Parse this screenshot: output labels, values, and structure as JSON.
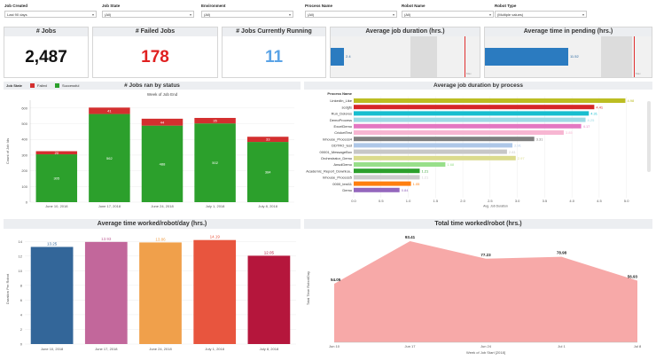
{
  "filters": [
    {
      "label": "Job Created",
      "value": "Last 90 days"
    },
    {
      "label": "Job State",
      "value": "(All)"
    },
    {
      "label": "Environment",
      "value": "(All)"
    },
    {
      "label": "Process Name",
      "value": "(All)"
    },
    {
      "label": "Robot Name",
      "value": "(All)"
    },
    {
      "label": "Robot Type",
      "value": "(Multiple values)"
    }
  ],
  "kpis": {
    "jobs": {
      "title": "# Jobs",
      "value": "2,487",
      "color": "#111111"
    },
    "failed": {
      "title": "# Failed Jobs",
      "value": "178",
      "color": "#e02020"
    },
    "running": {
      "title": "# Jobs Currently Running",
      "value": "11",
      "color": "#5aa3e6"
    }
  },
  "gauges": {
    "duration": {
      "title": "Average job duration (hrs.)",
      "value_label": "2.4",
      "value": 2.4,
      "max_label": "Max",
      "fill_fraction": 0.09
    },
    "pending": {
      "title": "Average time in pending (hrs.)",
      "value_label": "11.52",
      "value": 11.52,
      "max_label": "Max",
      "fill_fraction": 0.5
    }
  },
  "status_chart": {
    "panel_title": "# Jobs ran by status",
    "legend_title": "Job State",
    "legend": [
      {
        "name": "Failed",
        "color": "#d32f2f"
      },
      {
        "name": "Successful",
        "color": "#2ca02c"
      }
    ],
    "chart_data": {
      "type": "bar",
      "title": "Week of Job End",
      "ylabel": "Count of Job Ids",
      "ylim": [
        0,
        650
      ],
      "yticks": [
        "0",
        "100",
        "200",
        "300",
        "400",
        "500",
        "600"
      ],
      "categories": [
        "June 10, 2018",
        "June 17, 2018",
        "June 24, 2018",
        "July 1, 2018",
        "July 8, 2018"
      ],
      "series": [
        {
          "name": "Successful",
          "color": "#2ca02c",
          "values": [
            305,
            562,
            488,
            502,
            384
          ]
        },
        {
          "name": "Failed",
          "color": "#d32f2f",
          "values": [
            20,
            41,
            44,
            35,
            33
          ]
        }
      ]
    }
  },
  "process_chart": {
    "panel_title": "Average job duration by process",
    "column_label": "Process Name",
    "chart_data": {
      "type": "bar",
      "orientation": "horizontal",
      "xlabel": "Avg. Job Duration",
      "xlim": [
        0,
        5.2
      ],
      "xticks": [
        "0.0",
        "0.5",
        "1.0",
        "1.5",
        "2.0",
        "2.5",
        "3.0",
        "3.5",
        "4.0",
        "4.5",
        "5.0"
      ],
      "categories": [
        "LinkedIn_Like",
        "scdgfs",
        "Run_Dolores",
        "DemoProcess",
        "ExcelDemo",
        "CricketTest",
        "Inhouse_Process4",
        "DDTRO_test",
        "00001_MessageBox",
        "Orchestrator_Demo",
        "AnsolDemo",
        "Academic_Report_Downloa..",
        "Inhouse_Process5",
        "0000_test11",
        "Demo"
      ],
      "values": [
        4.98,
        4.41,
        4.31,
        4.25,
        4.17,
        3.85,
        3.31,
        2.91,
        2.81,
        2.97,
        1.68,
        1.21,
        1.21,
        1.05,
        0.84
      ],
      "value_labels": [
        "4.98",
        "4.41",
        "4.31",
        "4.25",
        "4.17",
        "3.85",
        "3.31",
        "2.91",
        "2.81",
        "2.97",
        "1.68",
        "1.21",
        "1.21",
        "1.05",
        "0.84"
      ],
      "colors": [
        "#bcbd22",
        "#d62728",
        "#17becf",
        "#9edae5",
        "#e377c2",
        "#f7b6d2",
        "#7f7f7f",
        "#aec7e8",
        "#c7c7c7",
        "#dbdb8d",
        "#98df8a",
        "#2ca02c",
        "#cccccc",
        "#ff7f0e",
        "#9467bd"
      ]
    }
  },
  "robot_day_chart": {
    "panel_title": "Average time worked/robot/day (hrs.)",
    "chart_data": {
      "type": "bar",
      "ylabel": "Duration Per Robot",
      "ylim": [
        0,
        15
      ],
      "yticks": [
        "0",
        "2",
        "4",
        "6",
        "8",
        "10",
        "12",
        "14"
      ],
      "categories": [
        "June 10, 2018",
        "June 17, 2018",
        "June 24, 2018",
        "July 1, 2018",
        "July 8, 2018"
      ],
      "values": [
        13.25,
        13.93,
        13.86,
        14.19,
        12.05
      ],
      "value_labels": [
        "13.25",
        "13.93",
        "13.86",
        "14.19",
        "12.05"
      ],
      "colors": [
        "#336699",
        "#c2679b",
        "#f0a04b",
        "#e8553e",
        "#b5163c"
      ]
    }
  },
  "total_chart": {
    "panel_title": "Total time worked/robot (hrs.)",
    "chart_data": {
      "type": "area",
      "xlabel": "Week of Job Start [2018]",
      "ylabel": "Total Time Robot/Day",
      "ylim": [
        0,
        100
      ],
      "categories": [
        "Jun 10",
        "Jun 17",
        "Jun 24",
        "Jul 1",
        "Jul 8"
      ],
      "values": [
        54.05,
        93.41,
        77.23,
        78.98,
        56.93
      ],
      "value_labels": [
        "54.05",
        "93.41",
        "77.23",
        "78.98",
        "56.93"
      ],
      "color": "#f7a9a8"
    }
  }
}
